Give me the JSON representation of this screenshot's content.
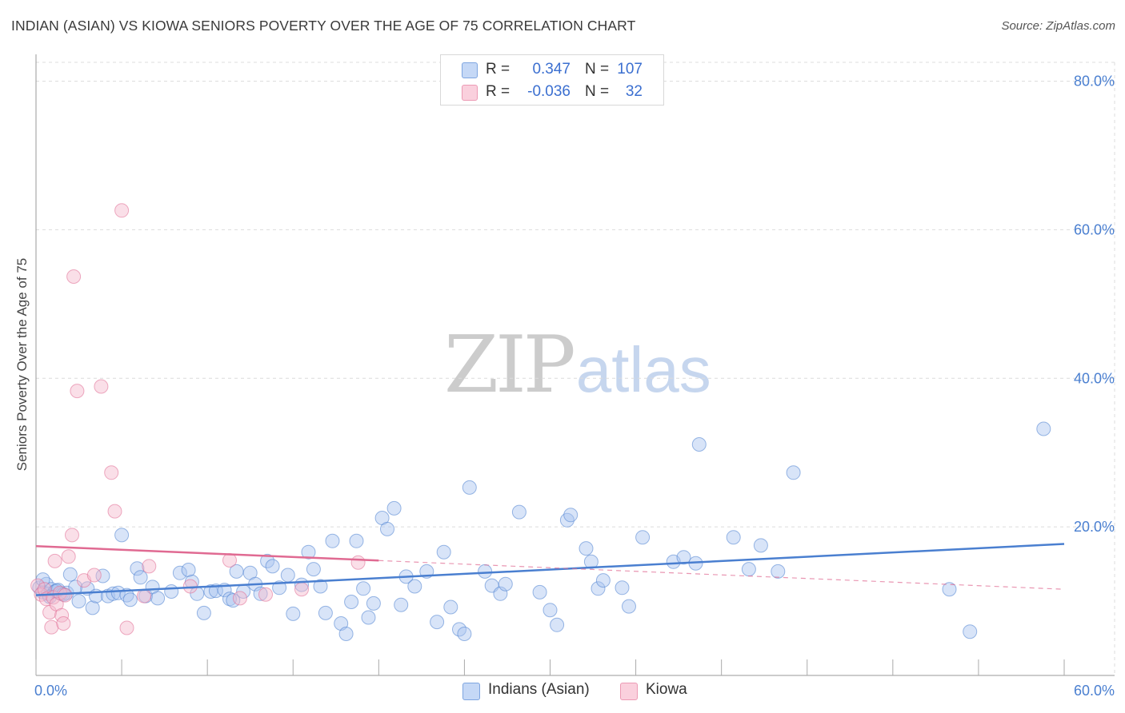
{
  "header": {
    "title": "INDIAN (ASIAN) VS KIOWA SENIORS POVERTY OVER THE AGE OF 75 CORRELATION CHART",
    "source": "Source: ZipAtlas.com"
  },
  "watermark": {
    "zip": "ZIP",
    "atlas": "atlas"
  },
  "legend": {
    "rows": [
      {
        "r_label": "R =",
        "r_value": "0.347",
        "n_label": "N =",
        "n_value": "107",
        "color": "#a9c4f0"
      },
      {
        "r_label": "R =",
        "r_value": "-0.036",
        "n_label": "N =",
        "n_value": "32",
        "color": "#f5b8cb"
      }
    ]
  },
  "bottom_legend": {
    "items": [
      {
        "label": "Indians (Asian)",
        "color": "#a9c4f0"
      },
      {
        "label": "Kiowa",
        "color": "#f5b8cb"
      }
    ]
  },
  "chart_data": {
    "type": "scatter",
    "title": "INDIAN (ASIAN) VS KIOWA SENIORS POVERTY OVER THE AGE OF 75 CORRELATION CHART",
    "xlabel": "",
    "ylabel": "Seniors Poverty Over the Age of 75",
    "xlim": [
      0,
      60
    ],
    "ylim": [
      0,
      84
    ],
    "x_tick_labels": [
      "0.0%",
      "60.0%"
    ],
    "y_ticks": [
      20,
      40,
      60,
      80
    ],
    "y_tick_labels": [
      "20.0%",
      "40.0%",
      "60.0%",
      "80.0%"
    ],
    "grid": true,
    "series": [
      {
        "name": "Indians (Asian)",
        "color": "#4a7fd0",
        "fill": "#a9c4f0",
        "trend": {
          "x0": 0,
          "y0": 10.8,
          "x1": 60,
          "y1": 17.7,
          "solid_until": 60
        },
        "points": [
          [
            0.2,
            11.8
          ],
          [
            0.4,
            11.2
          ],
          [
            0.6,
            12.3
          ],
          [
            0.7,
            11.0
          ],
          [
            0.9,
            11.6
          ],
          [
            1.1,
            11.3
          ],
          [
            1.3,
            11.5
          ],
          [
            1.5,
            11.0
          ],
          [
            1.8,
            11.1
          ],
          [
            2.0,
            13.6
          ],
          [
            2.3,
            11.9
          ],
          [
            2.5,
            10.0
          ],
          [
            3.0,
            11.7
          ],
          [
            3.3,
            9.1
          ],
          [
            3.5,
            10.7
          ],
          [
            3.9,
            13.4
          ],
          [
            4.2,
            10.7
          ],
          [
            4.5,
            11.0
          ],
          [
            4.8,
            11.1
          ],
          [
            5.0,
            18.9
          ],
          [
            5.3,
            10.8
          ],
          [
            5.5,
            10.2
          ],
          [
            5.9,
            14.4
          ],
          [
            6.1,
            13.2
          ],
          [
            6.4,
            10.7
          ],
          [
            6.8,
            11.9
          ],
          [
            7.1,
            10.4
          ],
          [
            7.9,
            11.3
          ],
          [
            8.4,
            13.8
          ],
          [
            8.9,
            14.2
          ],
          [
            9.1,
            12.6
          ],
          [
            9.4,
            11.0
          ],
          [
            9.8,
            8.4
          ],
          [
            10.2,
            11.3
          ],
          [
            10.5,
            11.4
          ],
          [
            11.0,
            11.5
          ],
          [
            11.3,
            10.3
          ],
          [
            11.5,
            10.1
          ],
          [
            11.7,
            14.0
          ],
          [
            12.1,
            11.3
          ],
          [
            12.5,
            13.8
          ],
          [
            12.8,
            12.3
          ],
          [
            13.1,
            11.0
          ],
          [
            13.5,
            15.4
          ],
          [
            13.8,
            14.7
          ],
          [
            14.2,
            11.8
          ],
          [
            14.7,
            13.5
          ],
          [
            15.0,
            8.3
          ],
          [
            15.5,
            12.2
          ],
          [
            15.9,
            16.6
          ],
          [
            16.2,
            14.3
          ],
          [
            16.6,
            12.0
          ],
          [
            16.9,
            8.4
          ],
          [
            17.3,
            18.1
          ],
          [
            17.8,
            7.0
          ],
          [
            18.1,
            5.6
          ],
          [
            18.4,
            9.9
          ],
          [
            18.7,
            18.1
          ],
          [
            19.1,
            11.7
          ],
          [
            19.4,
            7.8
          ],
          [
            19.7,
            9.7
          ],
          [
            20.2,
            21.2
          ],
          [
            20.5,
            19.7
          ],
          [
            20.9,
            22.5
          ],
          [
            21.3,
            9.5
          ],
          [
            21.6,
            13.3
          ],
          [
            22.1,
            12.0
          ],
          [
            22.8,
            14.0
          ],
          [
            23.4,
            7.2
          ],
          [
            23.8,
            16.6
          ],
          [
            24.2,
            9.2
          ],
          [
            24.7,
            6.2
          ],
          [
            25.0,
            5.6
          ],
          [
            25.3,
            25.3
          ],
          [
            26.2,
            14.0
          ],
          [
            26.6,
            12.1
          ],
          [
            27.1,
            11.0
          ],
          [
            27.4,
            12.3
          ],
          [
            28.2,
            22.0
          ],
          [
            29.4,
            11.2
          ],
          [
            30.0,
            8.8
          ],
          [
            30.4,
            6.8
          ],
          [
            31.0,
            20.9
          ],
          [
            31.2,
            21.6
          ],
          [
            32.1,
            17.1
          ],
          [
            32.4,
            15.3
          ],
          [
            32.8,
            11.7
          ],
          [
            33.1,
            12.8
          ],
          [
            34.2,
            11.8
          ],
          [
            34.6,
            9.3
          ],
          [
            35.4,
            18.6
          ],
          [
            37.2,
            15.3
          ],
          [
            37.8,
            15.9
          ],
          [
            38.5,
            15.1
          ],
          [
            38.7,
            31.1
          ],
          [
            40.7,
            18.6
          ],
          [
            41.6,
            14.3
          ],
          [
            42.3,
            17.5
          ],
          [
            43.3,
            14.0
          ],
          [
            44.2,
            27.3
          ],
          [
            53.3,
            11.6
          ],
          [
            54.5,
            5.9
          ],
          [
            58.8,
            33.2
          ],
          [
            0.4,
            12.9
          ],
          [
            0.8,
            10.6
          ],
          [
            1.2,
            11.4
          ],
          [
            1.6,
            10.9
          ]
        ]
      },
      {
        "name": "Kiowa",
        "color": "#e06a92",
        "fill": "#f5b8cb",
        "trend": {
          "x0": 0,
          "y0": 17.4,
          "x1": 60,
          "y1": 11.6,
          "solid_until": 20
        },
        "points": [
          [
            0.1,
            12.1
          ],
          [
            0.3,
            10.9
          ],
          [
            0.5,
            11.6
          ],
          [
            0.6,
            10.3
          ],
          [
            0.8,
            8.5
          ],
          [
            0.9,
            6.5
          ],
          [
            1.0,
            10.5
          ],
          [
            1.1,
            15.4
          ],
          [
            1.2,
            9.6
          ],
          [
            1.4,
            11.1
          ],
          [
            1.5,
            8.1
          ],
          [
            1.6,
            7.0
          ],
          [
            1.7,
            10.8
          ],
          [
            1.9,
            16.0
          ],
          [
            2.1,
            18.9
          ],
          [
            2.2,
            53.7
          ],
          [
            2.4,
            38.3
          ],
          [
            2.8,
            12.8
          ],
          [
            3.4,
            13.5
          ],
          [
            3.8,
            38.9
          ],
          [
            4.4,
            27.3
          ],
          [
            4.6,
            22.1
          ],
          [
            5.0,
            62.6
          ],
          [
            5.3,
            6.4
          ],
          [
            6.3,
            10.7
          ],
          [
            6.6,
            14.7
          ],
          [
            9.0,
            12.0
          ],
          [
            11.3,
            15.5
          ],
          [
            11.9,
            10.4
          ],
          [
            13.4,
            10.9
          ],
          [
            15.5,
            11.6
          ],
          [
            18.8,
            15.2
          ]
        ]
      }
    ]
  }
}
